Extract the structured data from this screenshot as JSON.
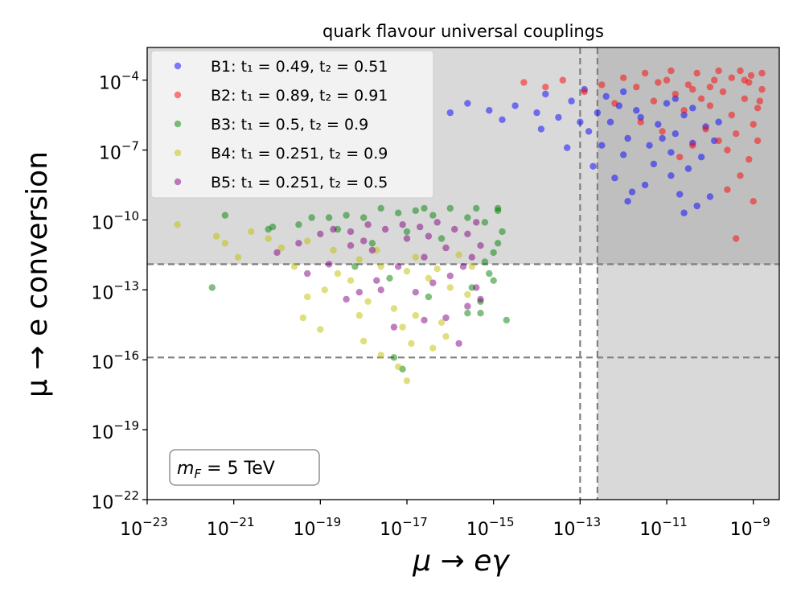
{
  "chart_data": {
    "type": "scatter",
    "title": "quark flavour universal couplings",
    "xlabel": "μ → eγ",
    "ylabel": "μ → e conversion",
    "xscale": "log",
    "yscale": "log",
    "xlim_exp": [
      -23,
      -8.4
    ],
    "ylim_exp": [
      -22,
      -2.6
    ],
    "x_ticks": [
      {
        "exp": -23,
        "base": "10",
        "sup": "−23"
      },
      {
        "exp": -21,
        "base": "10",
        "sup": "−21"
      },
      {
        "exp": -19,
        "base": "10",
        "sup": "−19"
      },
      {
        "exp": -17,
        "base": "10",
        "sup": "−17"
      },
      {
        "exp": -15,
        "base": "10",
        "sup": "−15"
      },
      {
        "exp": -13,
        "base": "10",
        "sup": "−13"
      },
      {
        "exp": -11,
        "base": "10",
        "sup": "−11"
      },
      {
        "exp": -9,
        "base": "10",
        "sup": "−9"
      }
    ],
    "y_ticks": [
      {
        "exp": -22,
        "base": "10",
        "sup": "−22"
      },
      {
        "exp": -19,
        "base": "10",
        "sup": "−19"
      },
      {
        "exp": -16,
        "base": "10",
        "sup": "−16"
      },
      {
        "exp": -13,
        "base": "10",
        "sup": "−13"
      },
      {
        "exp": -10,
        "base": "10",
        "sup": "−10"
      },
      {
        "exp": -7,
        "base": "10",
        "sup": "−7"
      },
      {
        "exp": -4,
        "base": "10",
        "sup": "−4"
      }
    ],
    "excluded_regions": [
      {
        "name": "mu-e-conversion-excluded",
        "y_min_exp": -11.9,
        "color": "#d9d9d9"
      },
      {
        "name": "mu-e-gamma-excluded",
        "x_min_exp": -12.6,
        "color": "#d9d9d9"
      }
    ],
    "reference_lines": {
      "vertical_exp": [
        -13.0,
        -12.6
      ],
      "horizontal_exp": [
        -11.9,
        -15.9
      ],
      "color": "#808080",
      "style": "dashed"
    },
    "series": [
      {
        "name": "B1",
        "label": "B1: t₁ = 0.49, t₂ = 0.51",
        "color": "#0000ff",
        "sample_points": [
          [
            -13.2,
            -4.9
          ],
          [
            -12.6,
            -5.4
          ],
          [
            -12.1,
            -5.1
          ],
          [
            -11.6,
            -5.6
          ],
          [
            -11.2,
            -5.9
          ],
          [
            -10.8,
            -6.3
          ],
          [
            -10.4,
            -6.7
          ],
          [
            -11.9,
            -6.5
          ],
          [
            -12.3,
            -5.8
          ],
          [
            -11.4,
            -6.8
          ],
          [
            -10.9,
            -7.1
          ],
          [
            -10.2,
            -7.3
          ],
          [
            -12.8,
            -6.2
          ],
          [
            -13.5,
            -5.6
          ],
          [
            -14.0,
            -5.4
          ],
          [
            -14.5,
            -5.1
          ],
          [
            -15.1,
            -5.3
          ],
          [
            -15.6,
            -5.0
          ],
          [
            -16.0,
            -5.4
          ],
          [
            -14.8,
            -5.7
          ],
          [
            -13.8,
            -4.6
          ],
          [
            -12.9,
            -4.4
          ],
          [
            -12.4,
            -4.7
          ],
          [
            -11.7,
            -5.3
          ],
          [
            -11.0,
            -5.0
          ],
          [
            -10.6,
            -5.5
          ],
          [
            -10.1,
            -6.0
          ],
          [
            -9.9,
            -6.6
          ],
          [
            -10.5,
            -7.8
          ],
          [
            -11.3,
            -7.6
          ],
          [
            -12.0,
            -7.2
          ],
          [
            -12.2,
            -8.2
          ],
          [
            -11.5,
            -8.5
          ],
          [
            -10.7,
            -8.9
          ],
          [
            -10.3,
            -9.4
          ],
          [
            -10.0,
            -9.0
          ],
          [
            -10.9,
            -8.1
          ],
          [
            -11.8,
            -8.8
          ],
          [
            -12.7,
            -7.7
          ],
          [
            -13.3,
            -6.9
          ],
          [
            -13.9,
            -6.1
          ],
          [
            -12.5,
            -6.8
          ],
          [
            -11.1,
            -6.5
          ],
          [
            -10.4,
            -5.2
          ],
          [
            -9.8,
            -5.8
          ],
          [
            -10.8,
            -4.8
          ],
          [
            -12.0,
            -4.5
          ],
          [
            -13.0,
            -5.8
          ],
          [
            -11.9,
            -9.2
          ],
          [
            -10.6,
            -9.7
          ]
        ]
      },
      {
        "name": "B2",
        "label": "B2: t₁ = 0.89, t₂ = 0.91",
        "color": "#ff0000",
        "sample_points": [
          [
            -11.0,
            -4.0
          ],
          [
            -10.5,
            -4.2
          ],
          [
            -10.0,
            -4.3
          ],
          [
            -9.5,
            -3.9
          ],
          [
            -9.1,
            -4.1
          ],
          [
            -8.8,
            -4.4
          ],
          [
            -10.8,
            -4.6
          ],
          [
            -10.2,
            -4.8
          ],
          [
            -9.7,
            -4.5
          ],
          [
            -9.2,
            -4.8
          ],
          [
            -8.9,
            -5.2
          ],
          [
            -9.5,
            -5.5
          ],
          [
            -10.0,
            -5.1
          ],
          [
            -10.6,
            -5.3
          ],
          [
            -11.3,
            -4.9
          ],
          [
            -11.7,
            -4.3
          ],
          [
            -12.0,
            -3.9
          ],
          [
            -12.5,
            -4.2
          ],
          [
            -12.9,
            -4.5
          ],
          [
            -13.4,
            -4.0
          ],
          [
            -13.8,
            -4.3
          ],
          [
            -14.3,
            -4.1
          ],
          [
            -11.5,
            -3.7
          ],
          [
            -10.9,
            -3.6
          ],
          [
            -10.3,
            -3.7
          ],
          [
            -9.8,
            -3.6
          ],
          [
            -9.3,
            -3.6
          ],
          [
            -8.8,
            -3.7
          ],
          [
            -9.0,
            -5.9
          ],
          [
            -9.4,
            -6.3
          ],
          [
            -9.8,
            -6.6
          ],
          [
            -10.1,
            -6.1
          ],
          [
            -9.6,
            -7.0
          ],
          [
            -9.1,
            -7.4
          ],
          [
            -9.3,
            -8.1
          ],
          [
            -9.6,
            -8.7
          ],
          [
            -9.0,
            -9.2
          ],
          [
            -9.4,
            -10.8
          ],
          [
            -10.4,
            -6.8
          ],
          [
            -10.7,
            -7.3
          ],
          [
            -11.1,
            -6.2
          ],
          [
            -11.6,
            -5.8
          ],
          [
            -12.2,
            -5.0
          ],
          [
            -8.9,
            -6.6
          ],
          [
            -9.2,
            -4.0
          ],
          [
            -9.9,
            -4.0
          ],
          [
            -10.4,
            -4.4
          ],
          [
            -11.2,
            -4.1
          ],
          [
            -8.85,
            -4.9
          ],
          [
            -9.05,
            -3.8
          ]
        ]
      },
      {
        "name": "B3",
        "label": "B3: t₁ = 0.5, t₂ = 0.9",
        "color": "#008000",
        "sample_points": [
          [
            -14.9,
            -9.6
          ],
          [
            -15.2,
            -10.1
          ],
          [
            -15.6,
            -9.9
          ],
          [
            -16.0,
            -9.5
          ],
          [
            -16.4,
            -9.8
          ],
          [
            -16.8,
            -9.6
          ],
          [
            -17.2,
            -9.7
          ],
          [
            -17.6,
            -9.5
          ],
          [
            -18.0,
            -9.9
          ],
          [
            -18.4,
            -9.8
          ],
          [
            -18.8,
            -9.9
          ],
          [
            -19.2,
            -9.9
          ],
          [
            -14.8,
            -10.5
          ],
          [
            -14.9,
            -11.0
          ],
          [
            -15.0,
            -11.4
          ],
          [
            -15.2,
            -11.8
          ],
          [
            -15.1,
            -12.3
          ],
          [
            -15.0,
            -12.6
          ],
          [
            -15.5,
            -12.9
          ],
          [
            -15.3,
            -13.5
          ],
          [
            -15.6,
            -14.0
          ],
          [
            -14.7,
            -14.3
          ],
          [
            -15.3,
            -14.0
          ],
          [
            -16.2,
            -10.8
          ],
          [
            -17.0,
            -10.5
          ],
          [
            -17.8,
            -11.0
          ],
          [
            -18.6,
            -10.4
          ],
          [
            -19.5,
            -10.2
          ],
          [
            -20.2,
            -10.4
          ],
          [
            -21.2,
            -9.8
          ],
          [
            -21.5,
            -12.9
          ],
          [
            -20.1,
            -10.3
          ],
          [
            -17.3,
            -15.9
          ],
          [
            -17.1,
            -16.4
          ],
          [
            -16.5,
            -13.3
          ],
          [
            -14.9,
            -9.5
          ],
          [
            -15.4,
            -9.5
          ],
          [
            -16.6,
            -9.5
          ],
          [
            -17.4,
            -12.5
          ],
          [
            -18.2,
            -12.0
          ]
        ]
      },
      {
        "name": "B4",
        "label": "B4: t₁ = 0.251, t₂ = 0.9",
        "color": "#bfbf00",
        "sample_points": [
          [
            -22.3,
            -10.2
          ],
          [
            -21.4,
            -10.7
          ],
          [
            -20.6,
            -10.5
          ],
          [
            -19.9,
            -11.2
          ],
          [
            -19.3,
            -10.9
          ],
          [
            -18.7,
            -11.3
          ],
          [
            -18.1,
            -11.7
          ],
          [
            -17.6,
            -12.0
          ],
          [
            -17.0,
            -12.2
          ],
          [
            -16.5,
            -12.5
          ],
          [
            -16.0,
            -12.9
          ],
          [
            -15.6,
            -13.2
          ],
          [
            -18.3,
            -12.6
          ],
          [
            -18.9,
            -13.0
          ],
          [
            -17.9,
            -13.5
          ],
          [
            -17.3,
            -13.8
          ],
          [
            -16.8,
            -14.1
          ],
          [
            -16.2,
            -14.4
          ],
          [
            -19.3,
            -13.3
          ],
          [
            -19.4,
            -14.2
          ],
          [
            -19.0,
            -14.7
          ],
          [
            -18.1,
            -14.1
          ],
          [
            -17.1,
            -14.6
          ],
          [
            -16.9,
            -15.3
          ],
          [
            -16.4,
            -15.5
          ],
          [
            -17.6,
            -15.8
          ],
          [
            -16.1,
            -15.0
          ],
          [
            -17.2,
            -16.3
          ],
          [
            -17.0,
            -16.9
          ],
          [
            -20.9,
            -11.6
          ],
          [
            -21.2,
            -11.0
          ],
          [
            -20.2,
            -10.8
          ],
          [
            -19.6,
            -12.0
          ],
          [
            -18.6,
            -12.3
          ],
          [
            -17.7,
            -11.3
          ],
          [
            -16.8,
            -11.6
          ],
          [
            -16.3,
            -12.1
          ],
          [
            -15.8,
            -11.5
          ],
          [
            -15.5,
            -12.0
          ],
          [
            -18.0,
            -15.2
          ]
        ]
      },
      {
        "name": "B5",
        "label": "B5: t₁ = 0.251, t₂ = 0.5",
        "color": "#800080",
        "sample_points": [
          [
            -15.4,
            -10.1
          ],
          [
            -15.9,
            -10.4
          ],
          [
            -16.3,
            -10.1
          ],
          [
            -16.7,
            -10.3
          ],
          [
            -17.1,
            -10.2
          ],
          [
            -17.5,
            -10.4
          ],
          [
            -17.9,
            -10.2
          ],
          [
            -18.3,
            -10.5
          ],
          [
            -18.7,
            -10.4
          ],
          [
            -19.0,
            -10.6
          ],
          [
            -15.3,
            -11.1
          ],
          [
            -15.5,
            -11.6
          ],
          [
            -15.7,
            -12.0
          ],
          [
            -16.0,
            -12.4
          ],
          [
            -16.4,
            -12.7
          ],
          [
            -16.8,
            -13.1
          ],
          [
            -15.4,
            -12.9
          ],
          [
            -15.3,
            -13.4
          ],
          [
            -15.6,
            -13.7
          ],
          [
            -16.1,
            -14.2
          ],
          [
            -16.6,
            -14.3
          ],
          [
            -17.3,
            -14.6
          ],
          [
            -15.8,
            -15.3
          ],
          [
            -18.4,
            -13.4
          ],
          [
            -18.1,
            -13.1
          ],
          [
            -17.6,
            -13.0
          ],
          [
            -19.5,
            -11.0
          ],
          [
            -20.0,
            -11.4
          ],
          [
            -19.3,
            -12.3
          ],
          [
            -18.8,
            -11.9
          ],
          [
            -17.2,
            -12.0
          ],
          [
            -16.6,
            -11.6
          ],
          [
            -17.8,
            -11.3
          ],
          [
            -18.3,
            -11.1
          ],
          [
            -16.1,
            -11.2
          ],
          [
            -17.0,
            -10.8
          ],
          [
            -18.0,
            -10.9
          ],
          [
            -16.5,
            -10.7
          ],
          [
            -15.6,
            -10.6
          ],
          [
            -17.7,
            -12.6
          ]
        ]
      }
    ],
    "annotation": {
      "text": "m",
      "sub": "F",
      "rest": " = 5 TeV"
    },
    "legend_position": "upper-left"
  }
}
